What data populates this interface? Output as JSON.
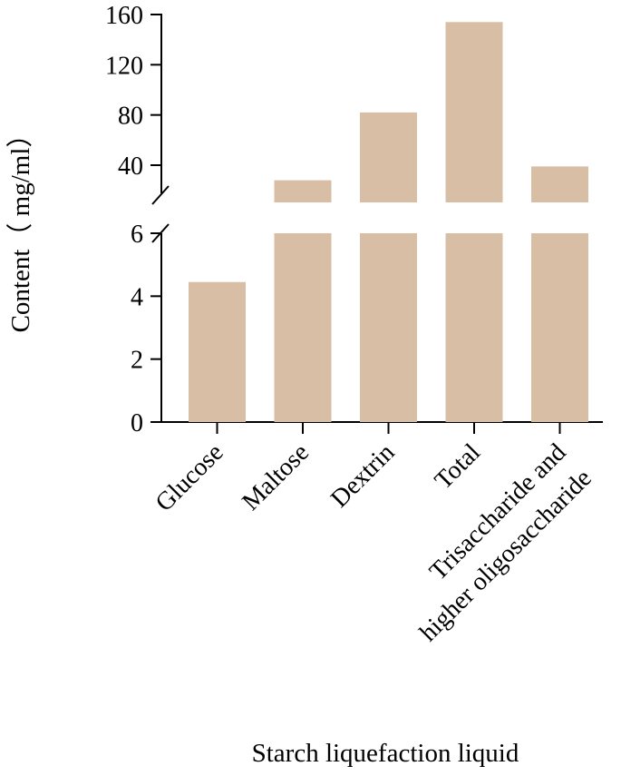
{
  "chart_data": {
    "type": "bar",
    "categories": [
      "Glucose",
      "Maltose",
      "Dextrin",
      "Total",
      "Trisaccharide and higher oligosaccharide"
    ],
    "category_lines": [
      [
        "Glucose"
      ],
      [
        "Maltose"
      ],
      [
        "Dextrin"
      ],
      [
        "Total"
      ],
      [
        "Trisaccharide and",
        "higher oligosaccharide"
      ]
    ],
    "values": [
      4.45,
      28,
      82,
      154,
      39
    ],
    "xlabel": "Starch liquefaction liquid",
    "ylabel": "Content（ mg/ml）",
    "axis_break": true,
    "lower_segment": {
      "ylim": [
        0,
        6
      ],
      "ticks": [
        0,
        2,
        4,
        6
      ]
    },
    "upper_segment": {
      "ylim": [
        15,
        160
      ],
      "ticks": [
        40,
        80,
        120,
        160
      ]
    },
    "bar_color": "#d9bea6",
    "grid": false,
    "legend": "none"
  }
}
